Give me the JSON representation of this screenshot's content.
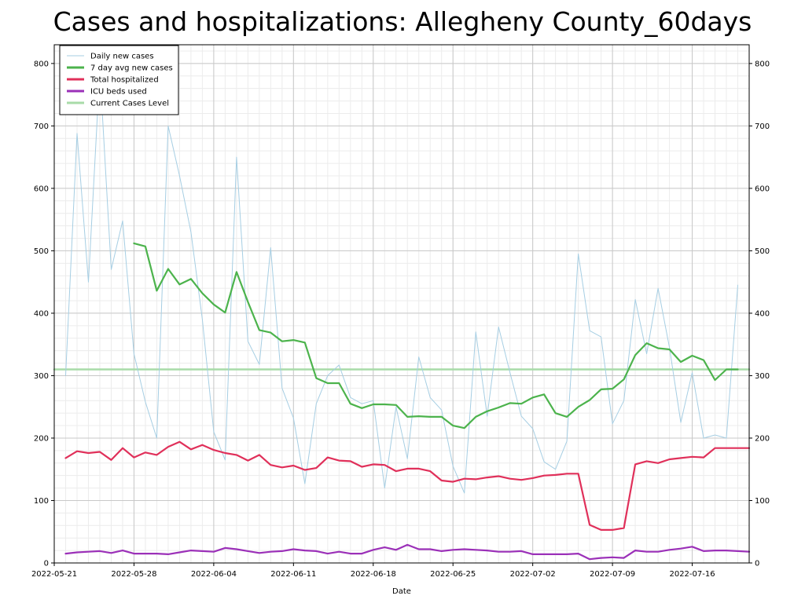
{
  "chart_data": {
    "type": "line",
    "title": "Cases and hospitalizations: Allegheny County_60days",
    "xlabel": "Date",
    "ylabel": "",
    "ylim": [
      0,
      830
    ],
    "xlim": [
      "2022-05-21",
      "2022-07-21"
    ],
    "y_ticks": [
      0,
      100,
      200,
      300,
      400,
      500,
      600,
      700,
      800
    ],
    "x_ticks": [
      "2022-05-21",
      "2022-05-28",
      "2022-06-04",
      "2022-06-11",
      "2022-06-18",
      "2022-06-25",
      "2022-07-02",
      "2022-07-09",
      "2022-07-16"
    ],
    "grid": true,
    "legend_position": "top-left",
    "series": [
      {
        "name": "Daily new cases",
        "color": "#a6cee3",
        "x": [
          "2022-05-22",
          "2022-05-23",
          "2022-05-24",
          "2022-05-25",
          "2022-05-26",
          "2022-05-27",
          "2022-05-28",
          "2022-05-29",
          "2022-05-30",
          "2022-05-31",
          "2022-06-01",
          "2022-06-02",
          "2022-06-03",
          "2022-06-04",
          "2022-06-05",
          "2022-06-06",
          "2022-06-07",
          "2022-06-08",
          "2022-06-09",
          "2022-06-10",
          "2022-06-11",
          "2022-06-12",
          "2022-06-13",
          "2022-06-14",
          "2022-06-15",
          "2022-06-16",
          "2022-06-17",
          "2022-06-18",
          "2022-06-19",
          "2022-06-20",
          "2022-06-21",
          "2022-06-22",
          "2022-06-23",
          "2022-06-24",
          "2022-06-25",
          "2022-06-26",
          "2022-06-27",
          "2022-06-28",
          "2022-06-29",
          "2022-06-30",
          "2022-07-01",
          "2022-07-02",
          "2022-07-03",
          "2022-07-04",
          "2022-07-05",
          "2022-07-06",
          "2022-07-07",
          "2022-07-08",
          "2022-07-09",
          "2022-07-10",
          "2022-07-11",
          "2022-07-12",
          "2022-07-13",
          "2022-07-14",
          "2022-07-15",
          "2022-07-16",
          "2022-07-17",
          "2022-07-18",
          "2022-07-19",
          "2022-07-20"
        ],
        "values": [
          300,
          688,
          450,
          790,
          470,
          548,
          335,
          258,
          200,
          700,
          620,
          530,
          390,
          210,
          165,
          650,
          355,
          318,
          505,
          280,
          232,
          127,
          255,
          300,
          317,
          265,
          255,
          260,
          120,
          250,
          167,
          330,
          265,
          245,
          155,
          112,
          370,
          235,
          378,
          305,
          235,
          215,
          162,
          150,
          195,
          495,
          372,
          362,
          223,
          260,
          422,
          335,
          440,
          345,
          225,
          305,
          200,
          205,
          200,
          445
        ]
      },
      {
        "name": "7 day avg new cases",
        "color": "#4cb34c",
        "x": [
          "2022-05-28",
          "2022-05-29",
          "2022-05-30",
          "2022-05-31",
          "2022-06-01",
          "2022-06-02",
          "2022-06-03",
          "2022-06-04",
          "2022-06-05",
          "2022-06-06",
          "2022-06-07",
          "2022-06-08",
          "2022-06-09",
          "2022-06-10",
          "2022-06-11",
          "2022-06-12",
          "2022-06-13",
          "2022-06-14",
          "2022-06-15",
          "2022-06-16",
          "2022-06-17",
          "2022-06-18",
          "2022-06-19",
          "2022-06-20",
          "2022-06-21",
          "2022-06-22",
          "2022-06-23",
          "2022-06-24",
          "2022-06-25",
          "2022-06-26",
          "2022-06-27",
          "2022-06-28",
          "2022-06-29",
          "2022-06-30",
          "2022-07-01",
          "2022-07-02",
          "2022-07-03",
          "2022-07-04",
          "2022-07-05",
          "2022-07-06",
          "2022-07-07",
          "2022-07-08",
          "2022-07-09",
          "2022-07-10",
          "2022-07-11",
          "2022-07-12",
          "2022-07-13",
          "2022-07-14",
          "2022-07-15",
          "2022-07-16",
          "2022-07-17",
          "2022-07-18",
          "2022-07-19",
          "2022-07-20"
        ],
        "values": [
          512,
          507,
          436,
          471,
          446,
          455,
          432,
          414,
          401,
          466,
          418,
          373,
          369,
          355,
          357,
          353,
          296,
          288,
          288,
          255,
          248,
          254,
          254,
          253,
          234,
          235,
          234,
          234,
          220,
          216,
          234,
          243,
          249,
          256,
          255,
          265,
          270,
          240,
          234,
          250,
          261,
          278,
          279,
          294,
          333,
          352,
          344,
          342,
          322,
          332,
          325,
          293,
          310,
          310
        ]
      },
      {
        "name": "Total hospitalized",
        "color": "#e0305a",
        "x": [
          "2022-05-22",
          "2022-05-23",
          "2022-05-24",
          "2022-05-25",
          "2022-05-26",
          "2022-05-27",
          "2022-05-28",
          "2022-05-29",
          "2022-05-30",
          "2022-05-31",
          "2022-06-01",
          "2022-06-02",
          "2022-06-03",
          "2022-06-04",
          "2022-06-05",
          "2022-06-06",
          "2022-06-07",
          "2022-06-08",
          "2022-06-09",
          "2022-06-10",
          "2022-06-11",
          "2022-06-12",
          "2022-06-13",
          "2022-06-14",
          "2022-06-15",
          "2022-06-16",
          "2022-06-17",
          "2022-06-18",
          "2022-06-19",
          "2022-06-20",
          "2022-06-21",
          "2022-06-22",
          "2022-06-23",
          "2022-06-24",
          "2022-06-25",
          "2022-06-26",
          "2022-06-27",
          "2022-06-28",
          "2022-06-29",
          "2022-06-30",
          "2022-07-01",
          "2022-07-02",
          "2022-07-03",
          "2022-07-04",
          "2022-07-05",
          "2022-07-06",
          "2022-07-07",
          "2022-07-08",
          "2022-07-09",
          "2022-07-10",
          "2022-07-11",
          "2022-07-12",
          "2022-07-13",
          "2022-07-14",
          "2022-07-15",
          "2022-07-16",
          "2022-07-17",
          "2022-07-18",
          "2022-07-19",
          "2022-07-20",
          "2022-07-21"
        ],
        "values": [
          168,
          179,
          176,
          178,
          165,
          184,
          169,
          177,
          173,
          186,
          194,
          182,
          189,
          181,
          176,
          173,
          164,
          173,
          157,
          153,
          156,
          149,
          152,
          169,
          164,
          163,
          154,
          158,
          157,
          147,
          151,
          151,
          147,
          132,
          130,
          135,
          134,
          137,
          139,
          135,
          133,
          136,
          140,
          141,
          143,
          143,
          61,
          53,
          53,
          56,
          158,
          163,
          160,
          166,
          168,
          170,
          169,
          184,
          184,
          184,
          184
        ]
      },
      {
        "name": "ICU beds used",
        "color": "#9b30b8",
        "x": [
          "2022-05-22",
          "2022-05-23",
          "2022-05-24",
          "2022-05-25",
          "2022-05-26",
          "2022-05-27",
          "2022-05-28",
          "2022-05-29",
          "2022-05-30",
          "2022-05-31",
          "2022-06-01",
          "2022-06-02",
          "2022-06-03",
          "2022-06-04",
          "2022-06-05",
          "2022-06-06",
          "2022-06-07",
          "2022-06-08",
          "2022-06-09",
          "2022-06-10",
          "2022-06-11",
          "2022-06-12",
          "2022-06-13",
          "2022-06-14",
          "2022-06-15",
          "2022-06-16",
          "2022-06-17",
          "2022-06-18",
          "2022-06-19",
          "2022-06-20",
          "2022-06-21",
          "2022-06-22",
          "2022-06-23",
          "2022-06-24",
          "2022-06-25",
          "2022-06-26",
          "2022-06-27",
          "2022-06-28",
          "2022-06-29",
          "2022-06-30",
          "2022-07-01",
          "2022-07-02",
          "2022-07-03",
          "2022-07-04",
          "2022-07-05",
          "2022-07-06",
          "2022-07-07",
          "2022-07-08",
          "2022-07-09",
          "2022-07-10",
          "2022-07-11",
          "2022-07-12",
          "2022-07-13",
          "2022-07-14",
          "2022-07-15",
          "2022-07-16",
          "2022-07-17",
          "2022-07-18",
          "2022-07-19",
          "2022-07-20",
          "2022-07-21"
        ],
        "values": [
          15,
          17,
          18,
          19,
          16,
          20,
          15,
          15,
          15,
          14,
          17,
          20,
          19,
          18,
          24,
          22,
          19,
          16,
          18,
          19,
          22,
          20,
          19,
          15,
          18,
          15,
          15,
          21,
          25,
          21,
          29,
          22,
          22,
          19,
          21,
          22,
          21,
          20,
          18,
          18,
          19,
          14,
          14,
          14,
          14,
          15,
          6,
          8,
          9,
          8,
          20,
          18,
          18,
          21,
          23,
          26,
          19,
          20,
          20,
          19,
          18
        ]
      },
      {
        "name": "Current Cases Level",
        "color": "#a8dba8",
        "x": [
          "2022-05-21",
          "2022-07-21"
        ],
        "values": [
          310,
          310
        ]
      }
    ]
  }
}
